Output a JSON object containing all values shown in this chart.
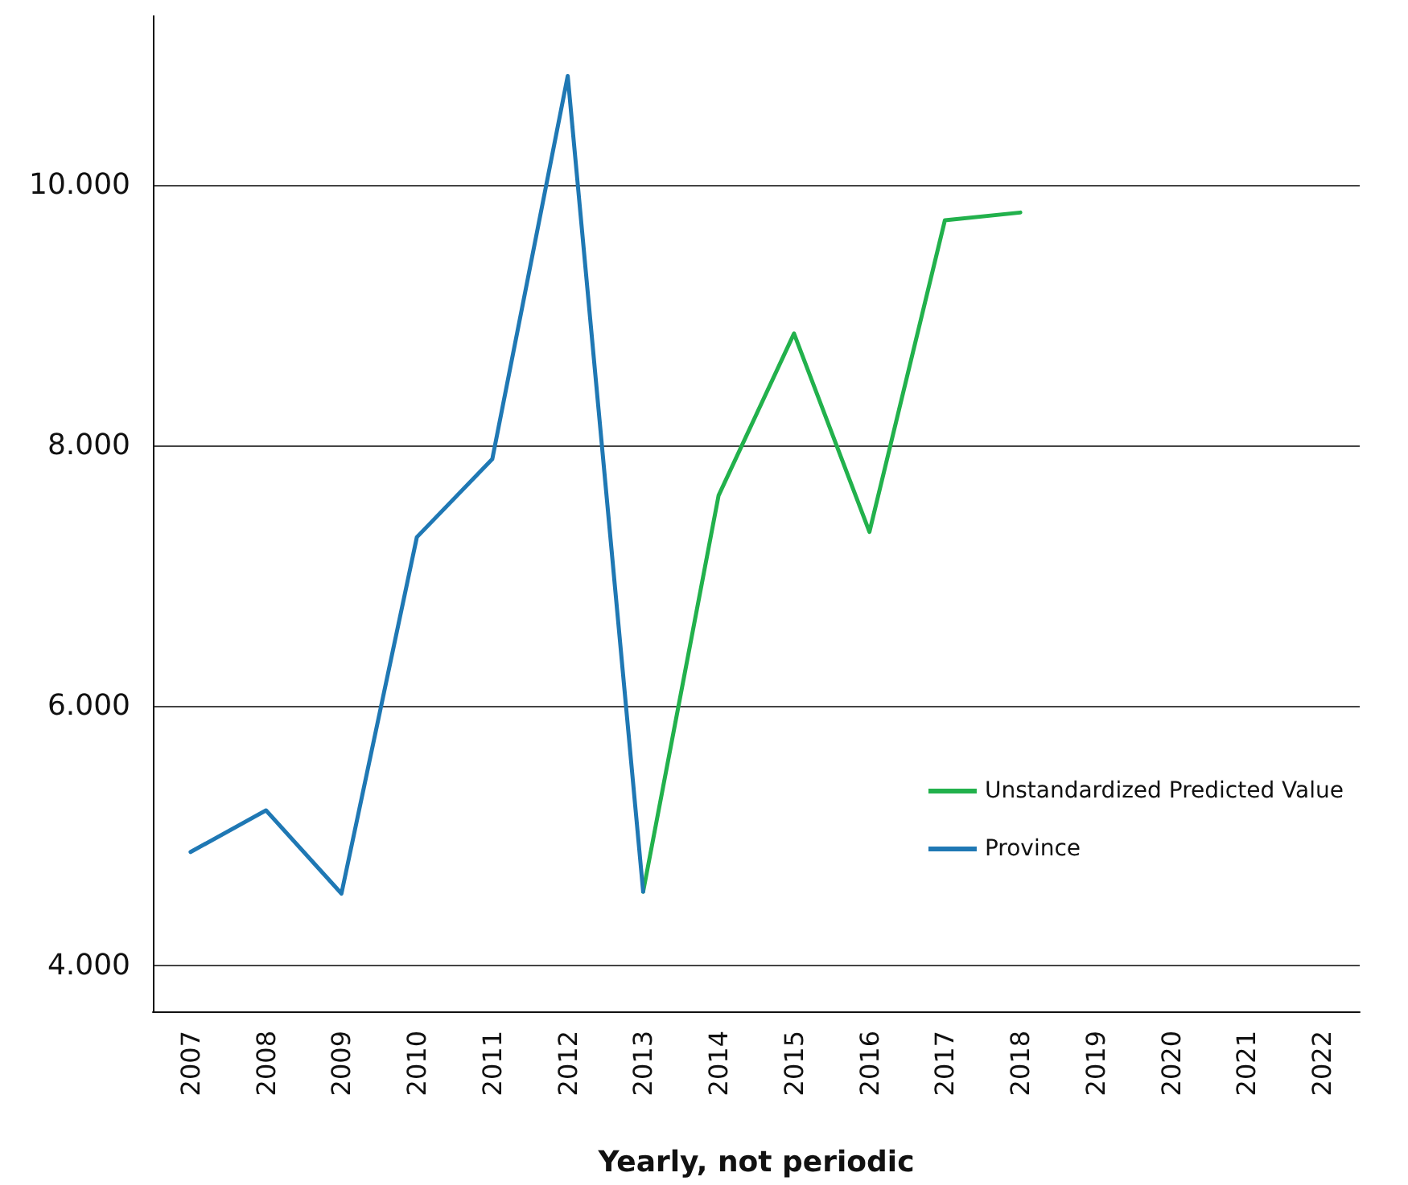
{
  "chart_data": {
    "type": "line",
    "xlabel": "Yearly, not periodic",
    "categories": [
      "2007",
      "2008",
      "2009",
      "2010",
      "2011",
      "2012",
      "2013",
      "2014",
      "2015",
      "2016",
      "2017",
      "2018",
      "2019",
      "2020",
      "2021",
      "2022"
    ],
    "series": [
      {
        "name": "Unstandardized Predicted Value",
        "color": "#22b14c",
        "values": [
          null,
          null,
          null,
          null,
          null,
          null,
          4570,
          7615,
          8860,
          7335,
          9730,
          9790,
          null,
          null,
          null,
          null
        ]
      },
      {
        "name": "Province",
        "color": "#1f78b4",
        "values": [
          4875,
          5195,
          4555,
          7295,
          7895,
          10840,
          4570,
          null,
          null,
          null,
          null,
          null,
          null,
          null,
          null,
          null
        ]
      }
    ],
    "ylim": [
      3650,
      11300
    ],
    "yticks": [
      {
        "value": 4000,
        "label": "4.000"
      },
      {
        "value": 6000,
        "label": "6.000"
      },
      {
        "value": 8000,
        "label": "8.000"
      },
      {
        "value": 10000,
        "label": "10.000"
      }
    ],
    "grid": "y",
    "legend": "right",
    "marker": "none",
    "line_style": "solid"
  }
}
